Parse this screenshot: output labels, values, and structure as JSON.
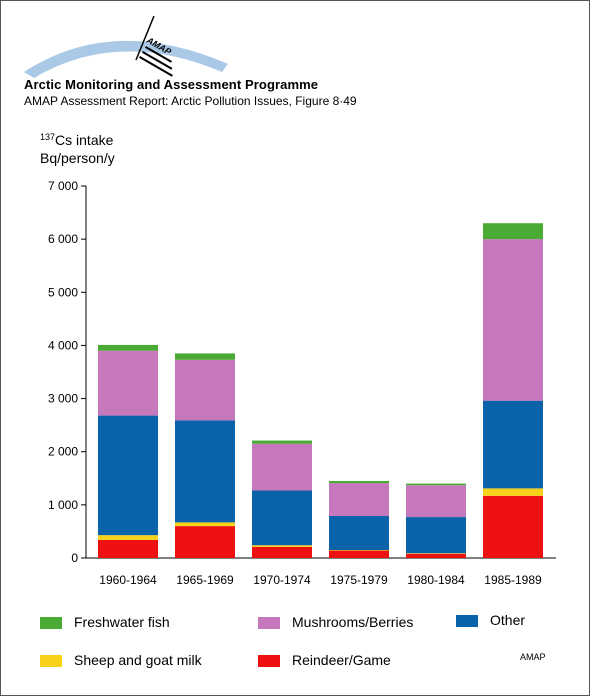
{
  "header": {
    "logo_text": "AMAP",
    "title": "Arctic Monitoring and Assessment Programme",
    "subtitle": "AMAP Assessment Report: Arctic Pollution Issues, Figure 8·49"
  },
  "colors": {
    "freshwater_fish": "#4aab34",
    "mushrooms_berries": "#c678bc",
    "other": "#0a62a9",
    "sheep_goat_milk": "#f7d21a",
    "reindeer_game": "#ee1111",
    "logo_arc": "#a9c9e6"
  },
  "chart_data": {
    "type": "bar",
    "stacked": true,
    "ylabel_superscript": "137",
    "ylabel_line1": "Cs intake",
    "ylabel_line2": "Bq/person/y",
    "ylim": [
      0,
      7000
    ],
    "yticks": [
      "0",
      "1 000",
      "2 000",
      "3 000",
      "4 000",
      "5 000",
      "6 000",
      "7 000"
    ],
    "ytick_values": [
      0,
      1000,
      2000,
      3000,
      4000,
      5000,
      6000,
      7000
    ],
    "categories": [
      "1960-1964",
      "1965-1969",
      "1970-1974",
      "1975-1979",
      "1980-1984",
      "1985-1989"
    ],
    "series": [
      {
        "name": "Reindeer/Game",
        "color_key": "reindeer_game",
        "values": [
          340,
          600,
          210,
          140,
          80,
          1170
        ]
      },
      {
        "name": "Sheep and goat milk",
        "color_key": "sheep_goat_milk",
        "values": [
          90,
          70,
          30,
          10,
          10,
          140
        ]
      },
      {
        "name": "Other",
        "color_key": "other",
        "values": [
          2250,
          1920,
          1030,
          640,
          680,
          1650
        ]
      },
      {
        "name": "Mushrooms/Berries",
        "color_key": "mushrooms_berries",
        "values": [
          1220,
          1140,
          880,
          620,
          600,
          3040
        ]
      },
      {
        "name": "Freshwater fish",
        "color_key": "freshwater_fish",
        "values": [
          110,
          120,
          60,
          40,
          30,
          300
        ]
      }
    ],
    "legend": [
      {
        "name": "Freshwater fish",
        "color_key": "freshwater_fish"
      },
      {
        "name": "Mushrooms/Berries",
        "color_key": "mushrooms_berries"
      },
      {
        "name": "Other",
        "color_key": "other"
      },
      {
        "name": "Sheep and goat milk",
        "color_key": "sheep_goat_milk"
      },
      {
        "name": "Reindeer/Game",
        "color_key": "reindeer_game"
      }
    ],
    "legend_position": "bottom",
    "grid": false
  },
  "credit": "AMAP"
}
